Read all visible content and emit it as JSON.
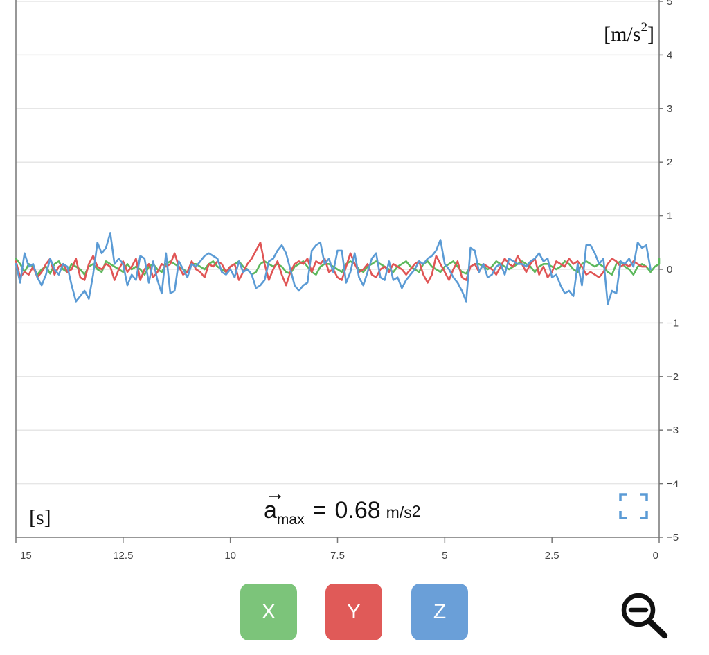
{
  "y_unit": {
    "base": "[m/s",
    "sup": "2",
    "close": "]"
  },
  "x_unit": "[s]",
  "max_readout": {
    "arrow": "→",
    "symbol": "a",
    "subscript": "max",
    "equals": "=",
    "value": "0.68",
    "unit": "m/s",
    "unit_sup": "2"
  },
  "buttons": {
    "x_label": "X",
    "y_label": "Y",
    "z_label": "Z"
  },
  "colors": {
    "x": "#5cb85c",
    "y": "#e05555",
    "z": "#5b9bd5",
    "grid": "#e6e6e6",
    "axis": "#777777",
    "x_button": "#7cc47a",
    "y_button": "#e05a58",
    "z_button": "#6a9fd8",
    "fullscreen_icon": "#5b9bd5"
  },
  "icons": {
    "fullscreen": "fullscreen-corners-icon",
    "zoom_out": "magnifier-minus-icon"
  },
  "chart_data": {
    "type": "line",
    "x_reversed": true,
    "xlim": [
      0,
      15
    ],
    "ylim": [
      -5,
      5
    ],
    "xticks": [
      15,
      12.5,
      10,
      7.5,
      5,
      2.5,
      0
    ],
    "xtick_labels": [
      "15",
      "12.5",
      "10",
      "7.5",
      "5",
      "2.5",
      "0"
    ],
    "yticks": [
      5,
      4,
      3,
      2,
      1,
      0,
      -1,
      -2,
      -3,
      -4,
      -5
    ],
    "ytick_labels": [
      "5",
      "4",
      "3",
      "2",
      "1",
      "0",
      "−1",
      "−2",
      "−3",
      "−4",
      "−5"
    ],
    "grid": true,
    "series": [
      {
        "key": "x",
        "x_start": 15,
        "dx": 0.1,
        "values": [
          0.2,
          0.1,
          -0.05,
          0.1,
          0.05,
          -0.1,
          0,
          0.05,
          -0.08,
          0.1,
          0.15,
          0,
          -0.05,
          0.1,
          0.05,
          0,
          -0.1,
          0.05,
          0.1,
          0,
          -0.05,
          0.15,
          0.1,
          0.05,
          0,
          -0.05,
          0.1,
          0,
          0.05,
          0,
          -0.1,
          0.05,
          0.1,
          0,
          -0.05,
          0.1,
          0.15,
          0.1,
          0.05,
          0,
          -0.05,
          0.1,
          0.1,
          0.05,
          0,
          0.1,
          0.15,
          0.05,
          0,
          -0.05,
          0.05,
          0.1,
          0.15,
          0.05,
          0,
          -0.1,
          -0.05,
          0.1,
          0.15,
          0.1,
          0.05,
          0.1,
          0.05,
          -0.05,
          -0.08,
          0.05,
          0.1,
          0.15,
          0.05,
          -0.05,
          -0.1,
          0.05,
          0.1,
          0.1,
          0.05,
          0,
          -0.05,
          0.1,
          0.15,
          0.1,
          0,
          -0.05,
          0.05,
          0.1,
          0.15,
          0.1,
          0.05,
          0,
          -0.05,
          0.05,
          0.1,
          0.15,
          0.05,
          0,
          -0.05,
          0.1,
          0.15,
          0.05,
          0,
          -0.05,
          0.05,
          0.1,
          0.15,
          0.05,
          -0.05,
          -0.08,
          0.05,
          0.1,
          0.1,
          0.05,
          0,
          0.05,
          0.15,
          0.1,
          0.05,
          0,
          0.05,
          0.1,
          0.15,
          0.1,
          0.05,
          -0.05,
          0.05,
          0.1,
          0.1,
          0.05,
          0,
          0.05,
          0.15,
          0.1,
          0,
          -0.05,
          0.1,
          0.15,
          0.1,
          0.05,
          0.1,
          0.05,
          -0.05,
          -0.1,
          0.1,
          0.15,
          0.05,
          0,
          -0.1,
          0.05,
          0.1,
          0.05,
          -0.05,
          0.05,
          0.1,
          0.2
        ]
      },
      {
        "key": "y",
        "x_start": 15,
        "dx": 0.1,
        "values": [
          0.15,
          -0.15,
          -0.05,
          -0.1,
          0.05,
          -0.15,
          -0.05,
          0.1,
          0.2,
          -0.1,
          0.05,
          0.1,
          -0.05,
          0,
          0.2,
          -0.15,
          -0.2,
          0.1,
          0.25,
          0.05,
          0,
          0.1,
          0.05,
          -0.2,
          0,
          0.15,
          -0.05,
          0.05,
          0.2,
          -0.2,
          0,
          0.1,
          -0.15,
          -0.05,
          0.1,
          0.05,
          0.1,
          0.3,
          0.05,
          -0.1,
          -0.05,
          0.15,
          0,
          -0.05,
          -0.15,
          0.1,
          0.05,
          0.15,
          0.1,
          -0.05,
          0.05,
          0.1,
          -0.2,
          -0.05,
          0.1,
          0.2,
          0.35,
          0.5,
          0.1,
          -0.2,
          0,
          0.15,
          -0.1,
          -0.3,
          -0.05,
          0.1,
          0.15,
          0.1,
          0.2,
          -0.05,
          0.15,
          0.1,
          0.2,
          -0.05,
          0,
          -0.15,
          -0.2,
          0.05,
          0.3,
          0.1,
          -0.05,
          0,
          0.1,
          -0.1,
          -0.15,
          0,
          0.05,
          -0.05,
          0.1,
          0.05,
          0,
          -0.1,
          0,
          0.1,
          0.15,
          -0.1,
          -0.25,
          -0.1,
          0.25,
          0.1,
          -0.05,
          -0.2,
          0,
          0.15,
          -0.15,
          -0.2,
          0.05,
          0.1,
          -0.05,
          0.1,
          0.05,
          0,
          -0.1,
          0.05,
          0.2,
          0.1,
          0.05,
          0.25,
          0.1,
          -0.05,
          0.1,
          0.2,
          -0.1,
          0.05,
          -0.15,
          -0.05,
          0.15,
          0.1,
          0.05,
          0.2,
          0.1,
          0.15,
          0.05,
          -0.1,
          -0.05,
          -0.1,
          -0.15,
          -0.05,
          0.1,
          0.2,
          0.15,
          0.05,
          0.1,
          0.05,
          0.15,
          0.1,
          0.05,
          0.05
        ]
      },
      {
        "key": "z",
        "x_start": 15,
        "dx": 0.1,
        "values": [
          0.1,
          -0.25,
          0.3,
          0.05,
          0.1,
          -0.15,
          -0.3,
          -0.1,
          0.2,
          0,
          -0.1,
          0.1,
          0.05,
          -0.3,
          -0.6,
          -0.5,
          -0.4,
          -0.55,
          -0.1,
          0.5,
          0.3,
          0.4,
          0.68,
          0.1,
          0.2,
          0.1,
          -0.3,
          -0.1,
          -0.2,
          0.25,
          0.2,
          -0.25,
          0.15,
          -0.2,
          -0.45,
          0.3,
          -0.45,
          -0.4,
          0.15,
          0,
          -0.15,
          0.1,
          0.05,
          0.15,
          0.25,
          0.3,
          0.25,
          0.2,
          -0.05,
          -0.1,
          0,
          -0.15,
          0.15,
          -0.05,
          0,
          -0.1,
          -0.35,
          -0.3,
          -0.2,
          0.15,
          0.2,
          0.35,
          0.45,
          0.3,
          0,
          -0.3,
          -0.4,
          -0.3,
          -0.25,
          0.35,
          0.45,
          0.5,
          0.1,
          0.2,
          -0.05,
          0.35,
          0.35,
          -0.25,
          -0.05,
          0.3,
          -0.15,
          -0.3,
          -0.05,
          0.2,
          0.3,
          -0.15,
          -0.2,
          0.15,
          -0.2,
          -0.15,
          -0.35,
          -0.2,
          -0.1,
          0,
          0.15,
          0.1,
          0.2,
          0.25,
          0.35,
          0.55,
          0.1,
          0,
          -0.15,
          -0.25,
          -0.4,
          -0.6,
          0.4,
          0.35,
          -0.05,
          0.1,
          -0.15,
          -0.1,
          0.05,
          0.1,
          -0.1,
          0.2,
          0.15,
          0.1,
          0.1,
          0.05,
          0.15,
          0.2,
          0.3,
          0.15,
          0.2,
          -0.15,
          -0.1,
          -0.3,
          -0.45,
          -0.4,
          -0.5,
          0.1,
          -0.3,
          0.45,
          0.45,
          0.3,
          0.1,
          0.2,
          -0.65,
          -0.4,
          -0.45,
          0.15,
          0.1,
          0.2,
          0.05,
          0.5,
          0.4,
          0.45,
          0
        ]
      }
    ]
  }
}
